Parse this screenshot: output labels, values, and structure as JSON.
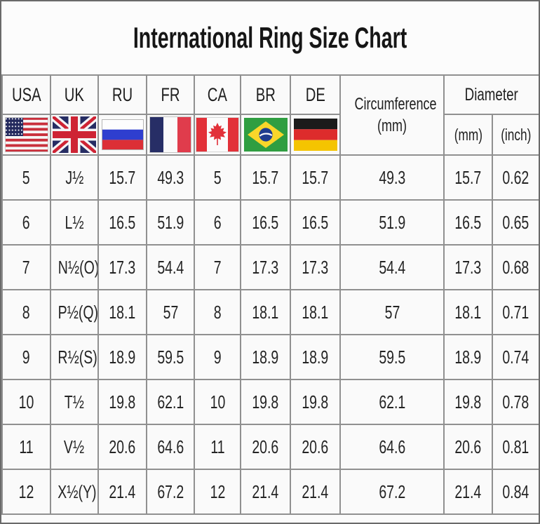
{
  "title": "International Ring Size Chart",
  "header": {
    "countries": [
      {
        "label": "USA",
        "flag_icon": "usa-flag-icon"
      },
      {
        "label": "UK",
        "flag_icon": "uk-flag-icon"
      },
      {
        "label": "RU",
        "flag_icon": "russia-flag-icon"
      },
      {
        "label": "FR",
        "flag_icon": "france-flag-icon"
      },
      {
        "label": "CA",
        "flag_icon": "canada-flag-icon"
      },
      {
        "label": "BR",
        "flag_icon": "brazil-flag-icon"
      },
      {
        "label": "DE",
        "flag_icon": "germany-flag-icon"
      }
    ],
    "circumference": {
      "line1": "Circumference",
      "line2": "(mm)"
    },
    "diameter": {
      "label": "Diameter",
      "units": [
        "(mm)",
        "(inch)"
      ]
    }
  },
  "colors": {
    "outer_border": "#6a6a6a",
    "grid_border": "#909090",
    "cell_background": "#fafafa",
    "text": "#242424"
  },
  "chart_data": {
    "type": "table",
    "title": "International Ring Size Chart",
    "columns": [
      "USA",
      "UK",
      "RU",
      "FR",
      "CA",
      "BR",
      "DE",
      "Circumference (mm)",
      "Diameter (mm)",
      "Diameter (inch)"
    ],
    "rows": [
      [
        "5",
        "J½",
        "15.7",
        "49.3",
        "5",
        "15.7",
        "15.7",
        "49.3",
        "15.7",
        "0.62"
      ],
      [
        "6",
        "L½",
        "16.5",
        "51.9",
        "6",
        "16.5",
        "16.5",
        "51.9",
        "16.5",
        "0.65"
      ],
      [
        "7",
        "N½(O)",
        "17.3",
        "54.4",
        "7",
        "17.3",
        "17.3",
        "54.4",
        "17.3",
        "0.68"
      ],
      [
        "8",
        "P½(Q)",
        "18.1",
        "57",
        "8",
        "18.1",
        "18.1",
        "57",
        "18.1",
        "0.71"
      ],
      [
        "9",
        "R½(S)",
        "18.9",
        "59.5",
        "9",
        "18.9",
        "18.9",
        "59.5",
        "18.9",
        "0.74"
      ],
      [
        "10",
        "T½",
        "19.8",
        "62.1",
        "10",
        "19.8",
        "19.8",
        "62.1",
        "19.8",
        "0.78"
      ],
      [
        "11",
        "V½",
        "20.6",
        "64.6",
        "11",
        "20.6",
        "20.6",
        "64.6",
        "20.6",
        "0.81"
      ],
      [
        "12",
        "X½(Y)",
        "21.4",
        "67.2",
        "12",
        "21.4",
        "21.4",
        "67.2",
        "21.4",
        "0.84"
      ]
    ]
  }
}
